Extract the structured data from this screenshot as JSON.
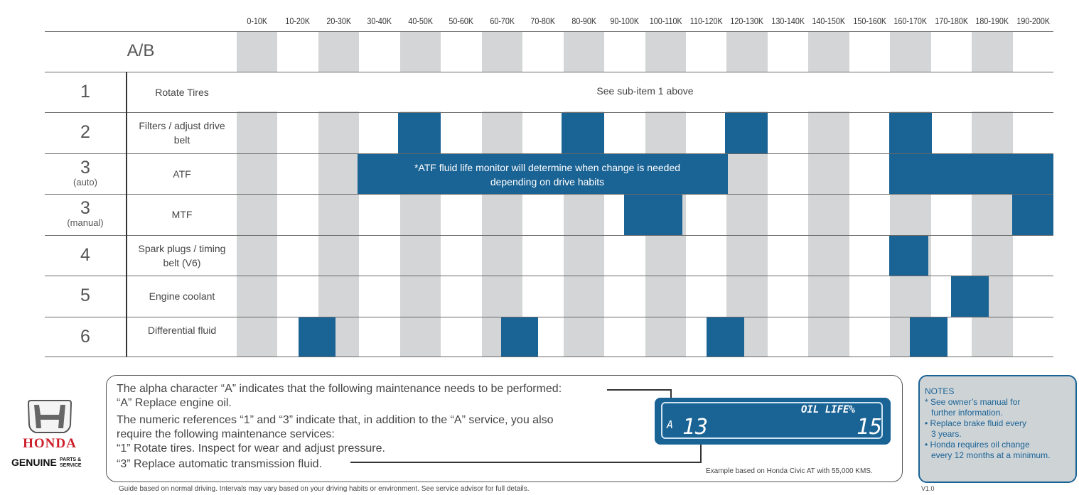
{
  "columns": [
    "0-10K",
    "10-20K",
    "20-30K",
    "30-40K",
    "40-50K",
    "50-60K",
    "60-70K",
    "70-80K",
    "80-90K",
    "90-100K",
    "100-110K",
    "110-120K",
    "120-130K",
    "130-140K",
    "140-150K",
    "150-160K",
    "160-170K",
    "170-180K",
    "180-190K",
    "190-200K"
  ],
  "ab_label": "A/B",
  "rows": [
    {
      "num": "1",
      "sub": "",
      "label": "Rotate Tires"
    },
    {
      "num": "2",
      "sub": "",
      "label": "Filters / adjust drive belt"
    },
    {
      "num": "3",
      "sub": "(auto)",
      "label": "ATF"
    },
    {
      "num": "3",
      "sub": "(manual)",
      "label": "MTF"
    },
    {
      "num": "4",
      "sub": "",
      "label": "Spark plugs / timing belt (V6)"
    },
    {
      "num": "5",
      "sub": "",
      "label": "Engine coolant"
    },
    {
      "num": "6",
      "sub": "",
      "label": "Differential fluid"
    }
  ],
  "see_sub_item": "See sub-item 1 above",
  "atf_note": "*ATF fluid life monitor will determine when change is needed depending on drive habits",
  "explanation": {
    "line1": "The alpha character “A” indicates that the following maintenance needs to be performed:",
    "line2": "“A” Replace engine oil.",
    "line3": "The numeric references “1” and “3” indicate that, in addition to the “A” service, you also",
    "line4": "require the following maintenance services:",
    "line5": "“1” Rotate tires. Inspect for wear and adjust pressure.",
    "line6": "“3” Replace automatic transmission fluid."
  },
  "display": {
    "code_letter": "A",
    "code_number": "13",
    "oil_life_label": "OIL LIFE%",
    "oil_life_value": "15"
  },
  "example_caption": "Example based on Honda Civic AT with 55,000 KMS.",
  "notes": {
    "title": "NOTES",
    "items": [
      "* See owner’s manual for",
      "further information.",
      "• Replace brake fluid every",
      "3 years.",
      "• Honda requires oil change",
      "every 12 months at a minimum."
    ]
  },
  "footer": "Guide based on normal driving. Intervals may vary based on your driving habits or environment. See service advisor for full details.",
  "version": "V1.0",
  "logo": {
    "brand": "HONDA",
    "genuine": "GENUINE",
    "parts_service": "PARTS & SERVICE"
  },
  "colors": {
    "stripe": "#d3d5d6",
    "cell": "#1a6395",
    "cell_dark": "#11507e"
  }
}
